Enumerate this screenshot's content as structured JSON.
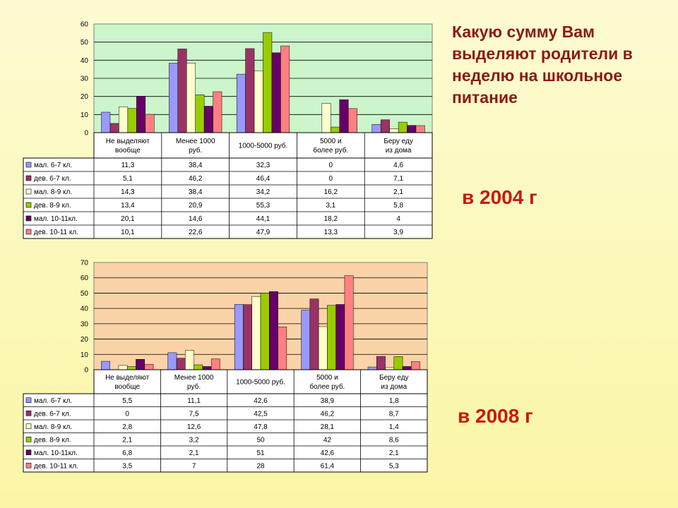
{
  "slide": {
    "title": "Какую сумму Вам выделяют родители в неделю на школьное питание"
  },
  "chart_data": [
    {
      "type": "bar",
      "year_label": "в 2004 г",
      "categories": [
        "Не выделяют вообще",
        "Менее 1000 руб.",
        "1000-5000 руб.",
        "5000 и более руб.",
        "Беру еду из дома"
      ],
      "ylim": [
        0,
        60
      ],
      "yticks": [
        0,
        10,
        20,
        30,
        40,
        50,
        60
      ],
      "plot_bg": "#ccf5cc",
      "series": [
        {
          "name": "мал. 6-7 кл.",
          "color": "#9999ff",
          "values": [
            11.3,
            38.4,
            32.3,
            0,
            4.6
          ],
          "labels": [
            "11,3",
            "38,4",
            "32,3",
            "0",
            "4,6"
          ]
        },
        {
          "name": "дев. 6-7 кл.",
          "color": "#993366",
          "values": [
            5.1,
            46.2,
            46.4,
            0,
            7.1
          ],
          "labels": [
            "5,1",
            "46,2",
            "46,4",
            "0",
            "7,1"
          ]
        },
        {
          "name": "мал. 8-9 кл.",
          "color": "#ffffcc",
          "values": [
            14.3,
            38.4,
            34.2,
            16.2,
            2.1
          ],
          "labels": [
            "14,3",
            "38,4",
            "34,2",
            "16,2",
            "2,1"
          ]
        },
        {
          "name": "дев. 8-9 кл.",
          "color": "#99cc00",
          "values": [
            13.4,
            20.9,
            55.3,
            3.1,
            5.8
          ],
          "labels": [
            "13,4",
            "20,9",
            "55,3",
            "3,1",
            "5,8"
          ]
        },
        {
          "name": "мал. 10-11кл.",
          "color": "#660066",
          "values": [
            20.1,
            14.6,
            44.1,
            18.2,
            4
          ],
          "labels": [
            "20,1",
            "14,6",
            "44,1",
            "18,2",
            "4"
          ]
        },
        {
          "name": "дев. 10-11 кл.",
          "color": "#ff8080",
          "values": [
            10.1,
            22.6,
            47.9,
            13.3,
            3.9
          ],
          "labels": [
            "10,1",
            "22,6",
            "47,9",
            "13,3",
            "3,9"
          ]
        }
      ]
    },
    {
      "type": "bar",
      "year_label": "в 2008 г",
      "categories": [
        "Не выделяют вообще",
        "Менее 1000 руб.",
        "1000-5000 руб.",
        "5000 и более руб.",
        "Беру еду из дома"
      ],
      "ylim": [
        0,
        70
      ],
      "yticks": [
        0,
        10,
        20,
        30,
        40,
        50,
        60,
        70
      ],
      "plot_bg": "#fbd3a8",
      "series": [
        {
          "name": "мал. 6-7 кл.",
          "color": "#9999ff",
          "values": [
            5.5,
            11.1,
            42.6,
            38.9,
            1.8
          ],
          "labels": [
            "5,5",
            "11,1",
            "42,6",
            "38,9",
            "1,8"
          ]
        },
        {
          "name": "дев. 6-7 кл.",
          "color": "#993366",
          "values": [
            0,
            7.5,
            42.5,
            46.2,
            8.7
          ],
          "labels": [
            "0",
            "7,5",
            "42,5",
            "46,2",
            "8,7"
          ]
        },
        {
          "name": "мал. 8-9 кл.",
          "color": "#ffffcc",
          "values": [
            2.8,
            12.6,
            47.8,
            28.1,
            1.4
          ],
          "labels": [
            "2,8",
            "12,6",
            "47,8",
            "28,1",
            "1,4"
          ]
        },
        {
          "name": "дев. 8-9 кл.",
          "color": "#99cc00",
          "values": [
            2.1,
            3.2,
            50,
            42,
            8.6
          ],
          "labels": [
            "2,1",
            "3,2",
            "50",
            "42",
            "8,6"
          ]
        },
        {
          "name": "мал. 10-11кл.",
          "color": "#660066",
          "values": [
            6.8,
            2.1,
            51,
            42.6,
            2.1
          ],
          "labels": [
            "6,8",
            "2,1",
            "51",
            "42,6",
            "2,1"
          ]
        },
        {
          "name": "дев. 10-11 кл.",
          "color": "#ff8080",
          "values": [
            3.5,
            7,
            28,
            61.4,
            5.3
          ],
          "labels": [
            "3,5",
            "7",
            "28",
            "61,4",
            "5,3"
          ]
        }
      ]
    }
  ]
}
